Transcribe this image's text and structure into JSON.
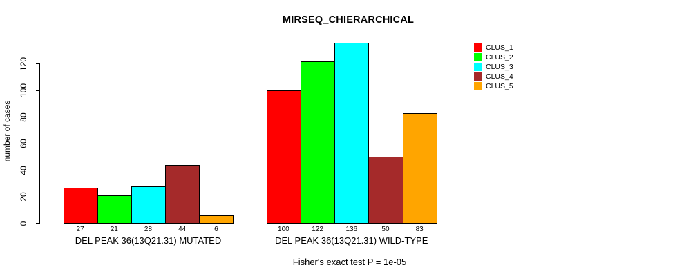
{
  "chart_data": {
    "type": "bar",
    "title": "MIRSEQ_CHIERARCHICAL",
    "ylabel": "number of cases",
    "xlabel": "",
    "categories": [
      "DEL PEAK 36(13Q21.31) MUTATED",
      "DEL PEAK 36(13Q21.31) WILD-TYPE"
    ],
    "series": [
      {
        "name": "CLUS_1",
        "color": "#FF0000",
        "values": [
          27,
          100
        ]
      },
      {
        "name": "CLUS_2",
        "color": "#00FF00",
        "values": [
          21,
          122
        ]
      },
      {
        "name": "CLUS_3",
        "color": "#00FFFF",
        "values": [
          28,
          136
        ]
      },
      {
        "name": "CLUS_4",
        "color": "#A52A2A",
        "values": [
          44,
          50
        ]
      },
      {
        "name": "CLUS_5",
        "color": "#FFA500",
        "values": [
          6,
          83
        ]
      }
    ],
    "bar_value_labels": [
      [
        27,
        21,
        28,
        44,
        6
      ],
      [
        100,
        122,
        136,
        50,
        83
      ]
    ],
    "yticks": [
      0,
      20,
      40,
      60,
      80,
      100,
      120
    ],
    "ylim": [
      0,
      140
    ],
    "grid": false,
    "legend_position": "right-inside",
    "annotation": "Fisher's exact test P = 1e-05",
    "bar_border_color": "#000000",
    "axis_color": "#000000",
    "text_color": "#000000",
    "background_color": "#FFFFFF"
  }
}
